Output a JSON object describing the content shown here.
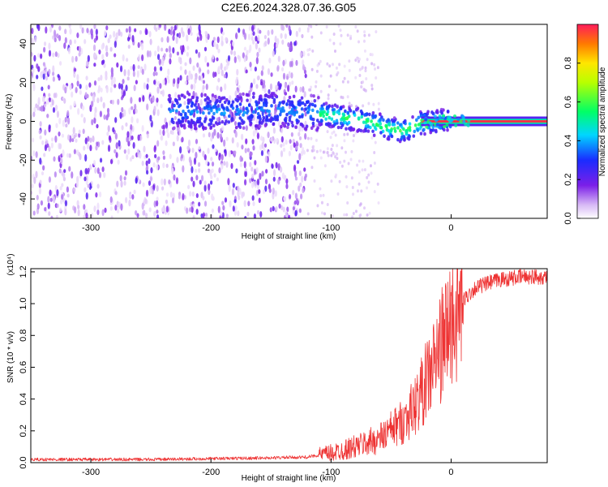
{
  "chart_data": [
    {
      "type": "heatmap",
      "title": "C2E6.2024.328.07.36.G05",
      "xlabel": "Height of straight line (km)",
      "ylabel": "Frequency (Hz)",
      "xlim": [
        -350,
        80
      ],
      "ylim": [
        -50,
        50
      ],
      "xticks": [
        -300,
        -200,
        -100,
        0
      ],
      "yticks": [
        -40,
        -20,
        0,
        20,
        40
      ],
      "colorbar": {
        "label": "Normalized spectral amplitude",
        "range": [
          0,
          1
        ],
        "ticks": [
          0.0,
          0.2,
          0.4,
          0.6,
          0.8
        ],
        "tick_labels": [
          "0.0",
          "0.2",
          "0.4",
          "0.6",
          "0.8"
        ],
        "colormap": "rainbow (white-purple-blue-cyan-green-yellow-red)"
      },
      "ridge_center_hz": [
        {
          "x": -220,
          "y": 5
        },
        {
          "x": -180,
          "y": 5
        },
        {
          "x": -140,
          "y": 6
        },
        {
          "x": -110,
          "y": 4
        },
        {
          "x": -90,
          "y": 2
        },
        {
          "x": -70,
          "y": 0
        },
        {
          "x": -55,
          "y": -3
        },
        {
          "x": -40,
          "y": -5
        },
        {
          "x": -25,
          "y": -1
        },
        {
          "x": -10,
          "y": 0
        },
        {
          "x": 0,
          "y": 1
        },
        {
          "x": 80,
          "y": 0
        }
      ],
      "grid": false
    },
    {
      "type": "line",
      "xlabel": "Height of straight line (km)",
      "ylabel": "SNR (10 * v/v)",
      "y_multiplier": "(x10⁴)",
      "xlim": [
        -350,
        80
      ],
      "ylim": [
        0,
        1.22
      ],
      "xticks": [
        -300,
        -200,
        -100,
        0
      ],
      "yticks": [
        0.0,
        0.2,
        0.4,
        0.6,
        0.8,
        1.0,
        1.2
      ],
      "ytick_labels": [
        "0.0",
        "0.2",
        "0.4",
        "0.6",
        "0.8",
        "1.0",
        "1.2"
      ],
      "series": [
        {
          "color": "#ee3333",
          "x": [
            -350,
            -300,
            -250,
            -200,
            -150,
            -120,
            -100,
            -80,
            -60,
            -40,
            -30,
            -20,
            -10,
            0,
            10,
            20,
            40,
            60,
            80
          ],
          "y": [
            0.02,
            0.02,
            0.02,
            0.025,
            0.03,
            0.035,
            0.06,
            0.1,
            0.15,
            0.26,
            0.36,
            0.52,
            0.7,
            0.88,
            1.02,
            1.1,
            1.15,
            1.17,
            1.17
          ]
        }
      ],
      "grid": false
    }
  ]
}
